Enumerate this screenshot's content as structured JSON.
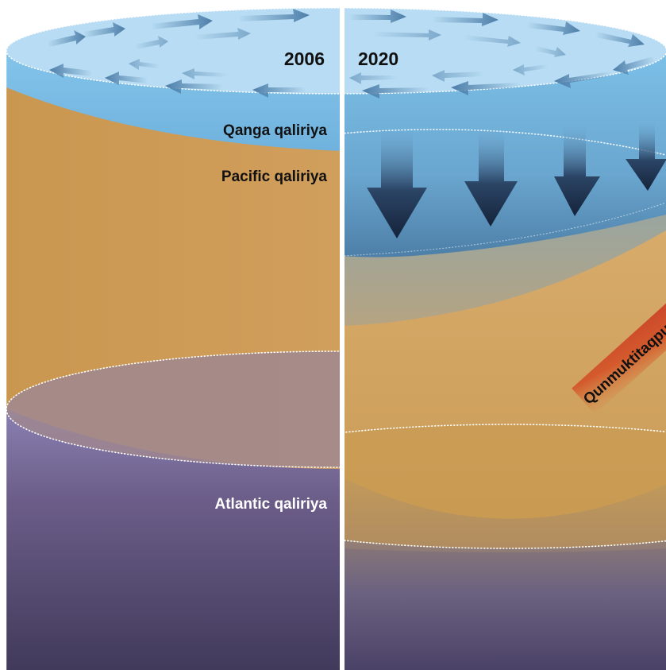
{
  "years": {
    "left": "2006",
    "right": "2020"
  },
  "layers": {
    "surface": "Qanga qaliriya",
    "pacific": "Pacific qaliriya",
    "atlantic": "Atlantic qaliriya"
  },
  "warm_arrow_label": "Qunmuktitaqpuq",
  "colors": {
    "surface_top": "#b6dcf2",
    "surface_rim": "#7fbfe6",
    "pacific": "#cc9b56",
    "atlantic_top": "#8a7fae",
    "atlantic_bottom": "#423a5c",
    "arrow_dark": "#1b2b45",
    "flow_arrow": "#4d7ea9",
    "warm_arrow": "#d4512a",
    "divider": "#ffffff",
    "label_dark": "#111111",
    "label_light": "#ffffff"
  }
}
